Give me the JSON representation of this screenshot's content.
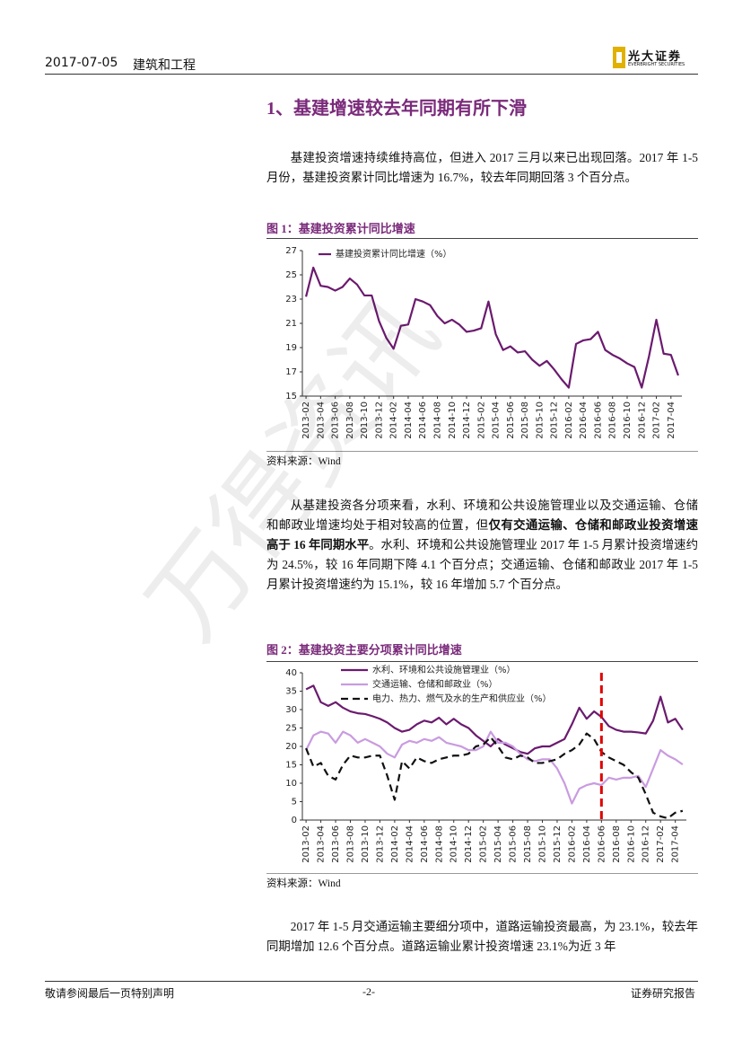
{
  "header": {
    "date": "2017-07-05",
    "industry": "建筑和工程",
    "logo_name": "光大证券",
    "logo_subtitle": "EVERBRIGHT SECURITIES"
  },
  "section_title": "1、基建增速较去年同期有所下滑",
  "paragraphs": [
    {
      "runs": [
        {
          "text": "基建投资增速持续维持高位，但进入 2017 三月以来已出现回落。2017 年 1-5 月份，基建投资累计同比增速为 16.7%，较去年同期回落 3 个百分点。",
          "bold": false
        }
      ]
    },
    {
      "runs": [
        {
          "text": "从基建投资各分项来看，水利、环境和公共设施管理业以及交通运输、仓储和邮政业增速均处于相对较高的位置，但",
          "bold": false
        },
        {
          "text": "仅有交通运输、仓储和邮政业投资增速高于 16 年同期水平",
          "bold": true
        },
        {
          "text": "。水利、环境和公共设施管理业 2017 年 1-5 月累计投资增速约为 24.5%，较 16 年同期下降 4.1 个百分点；交通运输、仓储和邮政业 2017 年 1-5 月累计投资增速约为 15.1%，较 16 年增加 5.7 个百分点。",
          "bold": false
        }
      ]
    },
    {
      "runs": [
        {
          "text": "2017 年 1-5 月交通运输主要细分项中，道路运输投资最高，为 23.1%，较去年同期增加 12.6 个百分点。道路运输业累计投资增速 23.1%为近 3 年",
          "bold": false
        }
      ]
    }
  ],
  "figures": [
    {
      "caption": "图 1：基建投资累计同比增速",
      "source": "资料来源：Wind"
    },
    {
      "caption": "图 2：基建投资主要分项累计同比增速",
      "source": "资料来源：Wind"
    }
  ],
  "chart_data": [
    {
      "type": "line",
      "categories": [
        "2013-02",
        null,
        "2013-04",
        null,
        "2013-06",
        null,
        "2013-08",
        null,
        "2013-10",
        null,
        "2013-12",
        null,
        "2014-02",
        null,
        "2014-04",
        null,
        "2014-06",
        null,
        "2014-08",
        null,
        "2014-10",
        null,
        "2014-12",
        null,
        "2015-02",
        null,
        "2015-04",
        null,
        "2015-06",
        null,
        "2015-08",
        null,
        "2015-10",
        null,
        "2015-12",
        null,
        "2016-02",
        null,
        "2016-04",
        null,
        "2016-06",
        null,
        "2016-08",
        null,
        "2016-10",
        null,
        "2016-12",
        null,
        "2017-02",
        null,
        "2017-04",
        null
      ],
      "series": [
        {
          "name": "基建投资累计同比增速（%）",
          "color": "#6b1a6f",
          "values": [
            23.2,
            25.6,
            24.1,
            24.0,
            23.7,
            24.0,
            24.7,
            24.2,
            23.3,
            23.3,
            21.2,
            19.8,
            18.9,
            20.8,
            20.9,
            23.0,
            22.8,
            22.5,
            21.6,
            21.0,
            21.3,
            20.9,
            20.3,
            20.4,
            20.6,
            22.8,
            20.1,
            18.8,
            19.1,
            18.6,
            18.7,
            18.0,
            17.5,
            17.9,
            17.2,
            16.4,
            15.7,
            19.3,
            19.6,
            19.7,
            20.3,
            18.8,
            18.4,
            18.1,
            17.7,
            17.4,
            15.7,
            18.3,
            21.3,
            18.5,
            18.4,
            16.7
          ]
        }
      ],
      "ylim": [
        15,
        27
      ],
      "yticks": [
        15,
        17,
        19,
        21,
        23,
        25,
        27
      ],
      "legend": "upper left"
    },
    {
      "type": "line",
      "categories": [
        "2013-02",
        null,
        "2013-04",
        null,
        "2013-06",
        null,
        "2013-08",
        null,
        "2013-10",
        null,
        "2013-12",
        null,
        "2014-02",
        null,
        "2014-04",
        null,
        "2014-06",
        null,
        "2014-08",
        null,
        "2014-10",
        null,
        "2014-12",
        null,
        "2015-02",
        null,
        "2015-04",
        null,
        "2015-06",
        null,
        "2015-08",
        null,
        "2015-10",
        null,
        "2015-12",
        null,
        "2016-02",
        null,
        "2016-04",
        null,
        "2016-06",
        null,
        "2016-08",
        null,
        "2016-10",
        null,
        "2016-12",
        null,
        "2017-02",
        null,
        "2017-04",
        null
      ],
      "series": [
        {
          "name": "水利、环境和公共设施管理业（%）",
          "color": "#6b1a6f",
          "dashed": false,
          "values": [
            35.5,
            36.5,
            32,
            31,
            32,
            30.5,
            29.5,
            29,
            28.8,
            28.2,
            27.5,
            26.5,
            25,
            24,
            24.5,
            26,
            27,
            26.5,
            27.8,
            26,
            27.5,
            26,
            25,
            23,
            21.5,
            20,
            22,
            20.5,
            19.5,
            18.5,
            18,
            19.5,
            20,
            20,
            21,
            22,
            26,
            30.5,
            27.5,
            29.5,
            28,
            25.5,
            24.5,
            24,
            24,
            23.8,
            23.5,
            27,
            33.5,
            26.5,
            27.5,
            24.5
          ]
        },
        {
          "name": "交通运输、仓储和邮政业（%）",
          "color": "#c99be0",
          "dashed": false,
          "values": [
            19,
            23,
            24,
            23.5,
            21,
            24,
            23,
            21,
            22,
            21,
            20,
            18,
            17,
            20.5,
            21.5,
            21,
            22,
            21.5,
            22.5,
            21,
            20.5,
            20,
            19,
            19,
            20,
            24,
            21,
            21,
            20,
            18,
            16.5,
            16,
            16.5,
            16.5,
            14,
            10,
            4.5,
            8.5,
            9.5,
            10,
            9.5,
            11.5,
            11,
            11.5,
            11.5,
            12,
            9,
            14,
            19,
            17.5,
            16.5,
            15.1
          ]
        },
        {
          "name": "电力、热力、燃气及水的生产和供应业（%）",
          "color": "#111111",
          "dashed": true,
          "values": [
            19.5,
            14.5,
            15.5,
            12,
            11,
            15,
            17.5,
            17,
            17,
            17.5,
            17.5,
            12,
            5.5,
            16,
            14,
            17,
            16,
            15.5,
            16.5,
            17,
            17.5,
            17.5,
            18,
            20,
            20.5,
            22.5,
            20,
            17,
            16.5,
            17.5,
            17,
            15.5,
            15.5,
            16,
            16.5,
            18,
            19,
            20.5,
            23.5,
            22,
            18.5,
            17,
            16,
            15,
            13,
            11.5,
            7,
            2,
            1,
            0.5,
            2,
            2.5
          ]
        }
      ],
      "ylim": [
        0,
        40
      ],
      "yticks": [
        0,
        5,
        10,
        15,
        20,
        25,
        30,
        35,
        40
      ],
      "legend": "upper left",
      "reference_line": {
        "x": "2016-06",
        "color": "#e00000",
        "dashed": true
      }
    }
  ],
  "watermark": "万得资讯",
  "footer": {
    "left": "敬请参阅最后一页特别声明",
    "page": "-2-",
    "right": "证券研究报告"
  }
}
